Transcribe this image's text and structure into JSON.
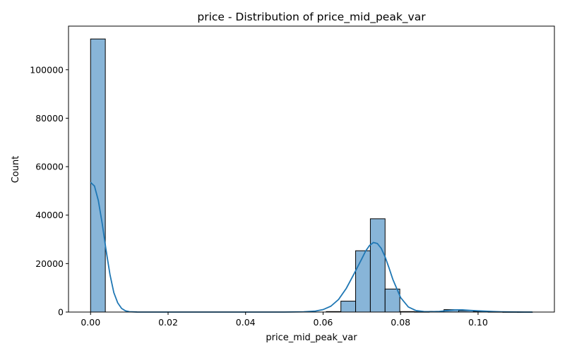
{
  "chart_data": {
    "type": "bar",
    "title": "price - Distribution of price_mid_peak_var",
    "xlabel": "price_mid_peak_var",
    "ylabel": "Count",
    "xlim": [
      -0.0057,
      0.1197
    ],
    "ylim": [
      0,
      118000
    ],
    "x_ticks": [
      0.0,
      0.02,
      0.04,
      0.06,
      0.08,
      0.1
    ],
    "x_tick_labels": [
      "0.00",
      "0.02",
      "0.04",
      "0.06",
      "0.08",
      "0.10"
    ],
    "y_ticks": [
      0,
      20000,
      40000,
      60000,
      80000,
      100000
    ],
    "y_tick_labels": [
      "0",
      "20000",
      "40000",
      "60000",
      "80000",
      "100000"
    ],
    "bin_edges": [
      0.0,
      0.0038,
      0.0076,
      0.0114,
      0.0152,
      0.019,
      0.0228,
      0.0266,
      0.0304,
      0.0342,
      0.038,
      0.0418,
      0.0456,
      0.0494,
      0.0532,
      0.057,
      0.0608,
      0.0646,
      0.0684,
      0.0722,
      0.076,
      0.0798,
      0.0836,
      0.0874,
      0.0912,
      0.095,
      0.0988,
      0.1026,
      0.1064,
      0.1102,
      0.114
    ],
    "counts": [
      112700,
      0,
      0,
      0,
      0,
      0,
      0,
      0,
      0,
      0,
      0,
      0,
      0,
      0,
      0,
      0,
      200,
      4500,
      25300,
      38500,
      9500,
      200,
      100,
      300,
      1000,
      600,
      300,
      100,
      50,
      20
    ],
    "kde": {
      "x": [
        0.0,
        0.001,
        0.002,
        0.003,
        0.004,
        0.005,
        0.006,
        0.007,
        0.008,
        0.009,
        0.01,
        0.012,
        0.015,
        0.02,
        0.03,
        0.04,
        0.05,
        0.055,
        0.058,
        0.06,
        0.062,
        0.064,
        0.066,
        0.068,
        0.07,
        0.071,
        0.072,
        0.073,
        0.074,
        0.075,
        0.076,
        0.077,
        0.078,
        0.08,
        0.082,
        0.084,
        0.086,
        0.088,
        0.09,
        0.092,
        0.094,
        0.096,
        0.098,
        0.1,
        0.102,
        0.104,
        0.106,
        0.108,
        0.11,
        0.112,
        0.114
      ],
      "y": [
        53500,
        52000,
        46000,
        36500,
        25500,
        15500,
        8000,
        3800,
        1500,
        500,
        150,
        20,
        0,
        0,
        0,
        0,
        0,
        100,
        400,
        1000,
        2400,
        5200,
        9800,
        15800,
        22000,
        25200,
        27500,
        28700,
        28300,
        26300,
        22800,
        18300,
        13500,
        6000,
        2100,
        600,
        200,
        150,
        250,
        600,
        900,
        900,
        700,
        500,
        350,
        200,
        100,
        50,
        30,
        10,
        0
      ]
    },
    "bar_color": "#88b5d8",
    "line_color": "#1f77b4",
    "grid": false
  }
}
